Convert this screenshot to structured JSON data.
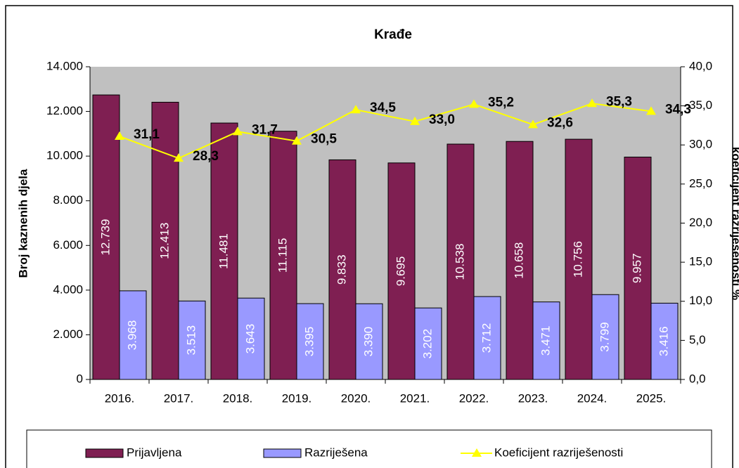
{
  "chart_data": {
    "type": "bar_line",
    "title": "Krađe",
    "y_label": "Broj kaznenih djela",
    "y2_label": "koeficijent razriješenosti %",
    "categories": [
      "2016.",
      "2017.",
      "2018.",
      "2019.",
      "2020.",
      "2021.",
      "2022.",
      "2023.",
      "2024.",
      "2025."
    ],
    "series": [
      {
        "name": "Prijavljena",
        "color": "#7f1f52",
        "type": "bar",
        "values": [
          12739,
          12413,
          11481,
          11115,
          9833,
          9695,
          10538,
          10658,
          10756,
          9957
        ],
        "value_labels": [
          "12.739",
          "12.413",
          "11.481",
          "11.115",
          "9.833",
          "9.695",
          "10.538",
          "10.658",
          "10.756",
          "9.957"
        ]
      },
      {
        "name": "Razriješena",
        "color": "#9999ff",
        "type": "bar",
        "values": [
          3968,
          3513,
          3643,
          3395,
          3390,
          3202,
          3712,
          3471,
          3799,
          3416
        ],
        "value_labels": [
          "3.968",
          "3.513",
          "3.643",
          "3.395",
          "3.390",
          "3.202",
          "3.712",
          "3.471",
          "3.799",
          "3.416"
        ]
      },
      {
        "name": "Koeficijent razriješenosti",
        "color": "#ffff00",
        "type": "line",
        "axis": "y2",
        "values": [
          31.1,
          28.3,
          31.7,
          30.5,
          34.5,
          33.0,
          35.2,
          32.6,
          35.3,
          34.3
        ],
        "value_labels": [
          "31,1",
          "28,3",
          "31,7",
          "30,5",
          "34,5",
          "33,0",
          "35,2",
          "32,6",
          "35,3",
          "34,3"
        ]
      }
    ],
    "ylim": [
      0,
      14000
    ],
    "yticks": [
      0,
      {
        "value": 2000,
        "label": "2.000"
      },
      {
        "value": 4000,
        "label": "4.000"
      },
      {
        "value": 6000,
        "label": "6.000"
      },
      {
        "value": 8000,
        "label": "8.000"
      },
      {
        "value": 10000,
        "label": "10.000"
      },
      {
        "value": 12000,
        "label": "12.000"
      },
      {
        "value": 14000,
        "label": "14.000"
      }
    ],
    "y2lim": [
      0,
      40
    ],
    "y2ticks": [
      {
        "value": 0,
        "label": "0,0"
      },
      {
        "value": 5,
        "label": "5,0"
      },
      {
        "value": 10,
        "label": "10,0"
      },
      {
        "value": 15,
        "label": "15,0"
      },
      {
        "value": 20,
        "label": "20,0"
      },
      {
        "value": 25,
        "label": "25,0"
      },
      {
        "value": 30,
        "label": "30,0"
      },
      {
        "value": 35,
        "label": "35,0"
      },
      {
        "value": 40,
        "label": "40,0"
      }
    ],
    "plot_background": "#c0c0c0"
  }
}
